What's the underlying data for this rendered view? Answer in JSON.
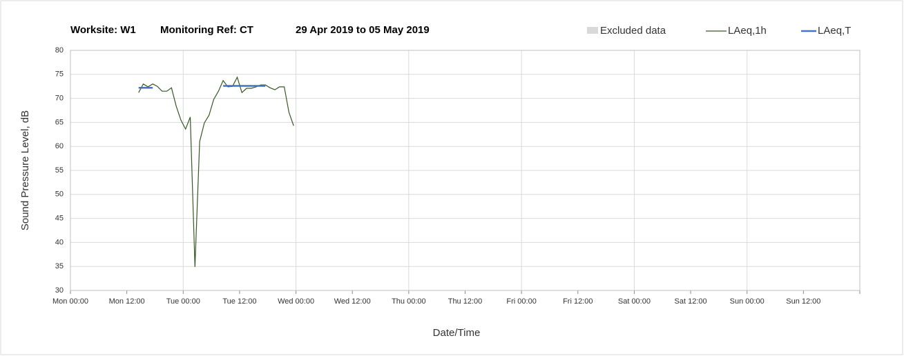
{
  "chart_data": {
    "type": "line",
    "title": [
      "Worksite: W1",
      "Monitoring Ref: CT",
      "29 Apr 2019 to 05 May 2019"
    ],
    "x_label": "Date/Time",
    "y_label": "Sound Pressure Level, dB",
    "xlim": [
      0,
      168
    ],
    "xticks": [
      {
        "value": 0,
        "label": "Mon 00:00"
      },
      {
        "value": 12,
        "label": "Mon 12:00"
      },
      {
        "value": 24,
        "label": "Tue 00:00"
      },
      {
        "value": 36,
        "label": "Tue 12:00"
      },
      {
        "value": 48,
        "label": "Wed 00:00"
      },
      {
        "value": 60,
        "label": "Wed 12:00"
      },
      {
        "value": 72,
        "label": "Thu 00:00"
      },
      {
        "value": 84,
        "label": "Thu 12:00"
      },
      {
        "value": 96,
        "label": "Fri 00:00"
      },
      {
        "value": 108,
        "label": "Fri 12:00"
      },
      {
        "value": 120,
        "label": "Sat 00:00"
      },
      {
        "value": 132,
        "label": "Sat 12:00"
      },
      {
        "value": 144,
        "label": "Sun 00:00"
      },
      {
        "value": 156,
        "label": "Sun 12:00"
      }
    ],
    "ylim": [
      30,
      80
    ],
    "yticks": [
      30,
      35,
      40,
      45,
      50,
      55,
      60,
      65,
      70,
      75,
      80
    ],
    "grid": true,
    "legend": "top-right",
    "series": [
      {
        "name": "Excluded data",
        "color": "#d9d9d9",
        "kind": "area",
        "x": [],
        "values": []
      },
      {
        "name": "LAeq,1h",
        "color": "#375623",
        "kind": "line",
        "x": [
          14.5,
          15.5,
          16.5,
          17.5,
          18.5,
          19.5,
          20.5,
          21.5,
          22.5,
          23.5,
          24.5,
          25.5,
          26.5,
          27.5,
          28.5,
          29.5,
          30.5,
          31.5,
          32.5,
          33.5,
          34.5,
          35.5,
          36.5,
          37.5,
          38.5,
          39.5,
          40.5,
          41.5,
          42.5,
          43.5,
          44.5,
          45.5,
          46.5,
          47.5
        ],
        "values": [
          71.2,
          73.0,
          72.4,
          73.0,
          72.5,
          71.5,
          71.5,
          72.2,
          68.4,
          65.5,
          63.6,
          66.1,
          34.9,
          61.0,
          64.9,
          66.5,
          69.8,
          71.5,
          73.7,
          72.4,
          72.5,
          74.4,
          71.2,
          72.1,
          72.1,
          72.4,
          72.8,
          72.8,
          72.2,
          71.8,
          72.4,
          72.4,
          67.1,
          64.3
        ]
      },
      {
        "name": "LAeq,T",
        "color": "#4472c4",
        "kind": "line",
        "x": [
          14.5,
          17.5,
          null,
          32.5,
          41.5
        ],
        "values": [
          72.2,
          72.2,
          null,
          72.6,
          72.6
        ]
      }
    ]
  }
}
